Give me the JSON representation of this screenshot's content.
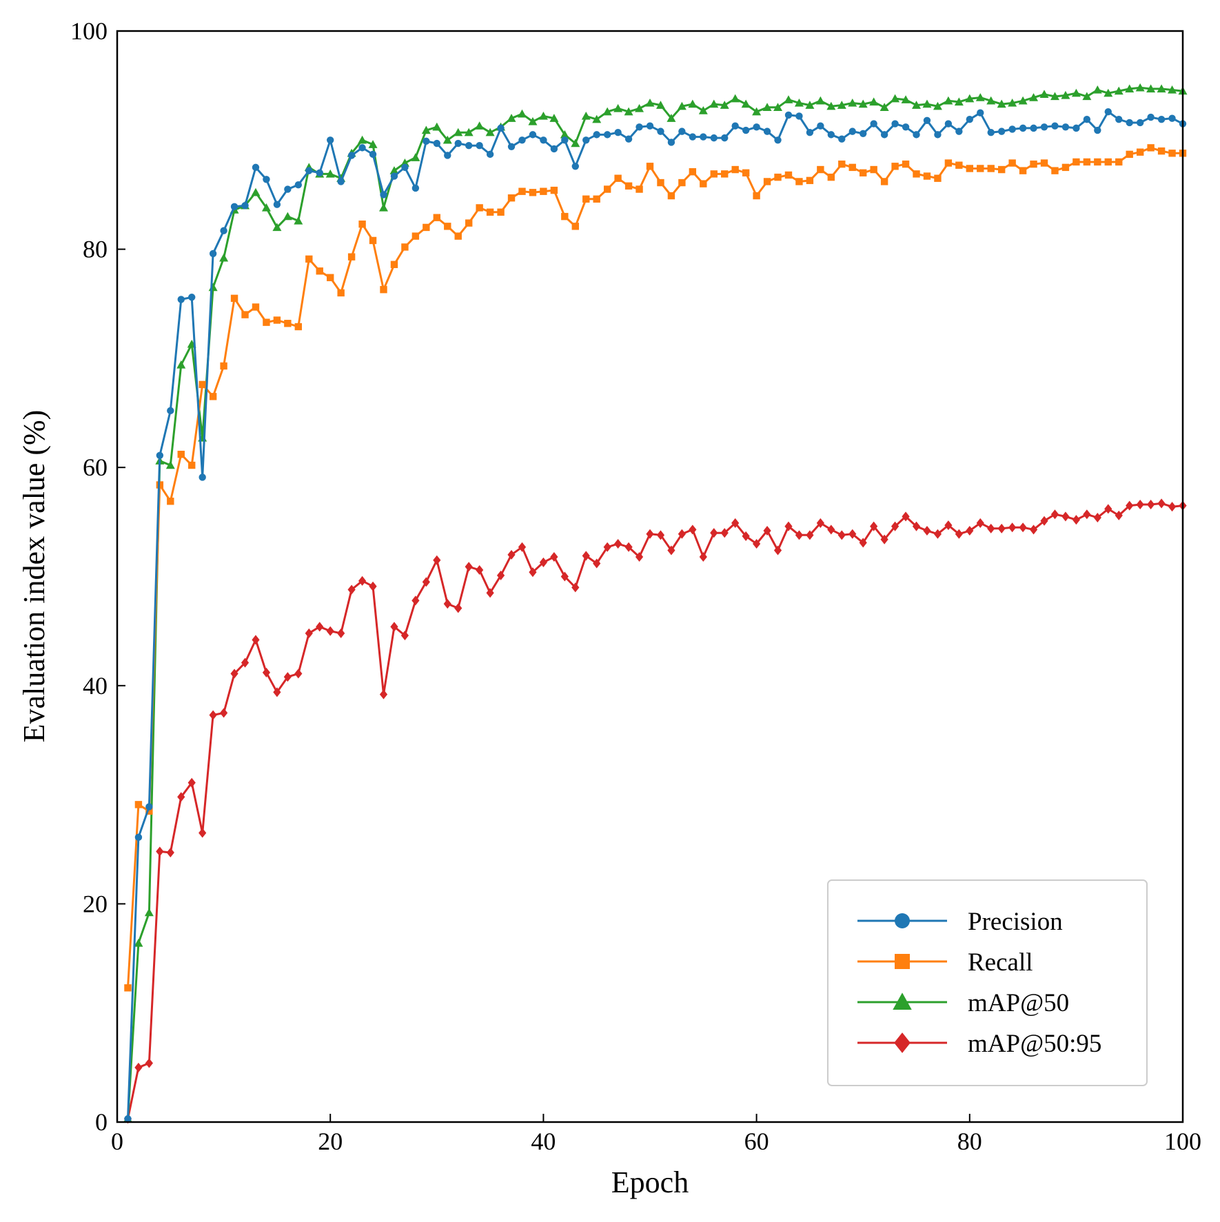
{
  "chart_data": {
    "type": "line",
    "xlabel": "Epoch",
    "ylabel": "Evaluation index value (%)",
    "xlim": [
      0,
      100
    ],
    "ylim": [
      0,
      100
    ],
    "xticks": [
      0,
      20,
      40,
      60,
      80,
      100
    ],
    "yticks": [
      0,
      20,
      40,
      60,
      80,
      100
    ],
    "grid": false,
    "legend_position": "lower-right",
    "x": [
      1,
      2,
      3,
      4,
      5,
      6,
      7,
      8,
      9,
      10,
      11,
      12,
      13,
      14,
      15,
      16,
      17,
      18,
      19,
      20,
      21,
      22,
      23,
      24,
      25,
      26,
      27,
      28,
      29,
      30,
      31,
      32,
      33,
      34,
      35,
      36,
      37,
      38,
      39,
      40,
      41,
      42,
      43,
      44,
      45,
      46,
      47,
      48,
      49,
      50,
      51,
      52,
      53,
      54,
      55,
      56,
      57,
      58,
      59,
      60,
      61,
      62,
      63,
      64,
      65,
      66,
      67,
      68,
      69,
      70,
      71,
      72,
      73,
      74,
      75,
      76,
      77,
      78,
      79,
      80,
      81,
      82,
      83,
      84,
      85,
      86,
      87,
      88,
      89,
      90,
      91,
      92,
      93,
      94,
      95,
      96,
      97,
      98,
      99,
      100
    ],
    "series": [
      {
        "name": "Precision",
        "color": "#1f77b4",
        "marker": "circle",
        "values": [
          0.3,
          26.1,
          28.9,
          61.1,
          65.2,
          75.4,
          75.6,
          59.1,
          79.6,
          81.7,
          83.9,
          84.0,
          87.5,
          86.4,
          84.1,
          85.5,
          85.9,
          87.2,
          87.0,
          90.0,
          86.2,
          88.6,
          89.3,
          88.7,
          85.0,
          86.7,
          87.5,
          85.6,
          89.9,
          89.7,
          88.6,
          89.7,
          89.5,
          89.5,
          88.7,
          91.1,
          89.4,
          90.0,
          90.5,
          90.0,
          89.2,
          90.0,
          87.6,
          90.0,
          90.5,
          90.5,
          90.7,
          90.1,
          91.2,
          91.3,
          90.8,
          89.8,
          90.8,
          90.3,
          90.3,
          90.2,
          90.2,
          91.3,
          90.9,
          91.2,
          90.8,
          90.0,
          92.3,
          92.2,
          90.7,
          91.3,
          90.5,
          90.1,
          90.8,
          90.6,
          91.5,
          90.5,
          91.5,
          91.2,
          90.5,
          91.8,
          90.5,
          91.5,
          90.8,
          91.9,
          92.5,
          90.7,
          90.8,
          91.0,
          91.1,
          91.1,
          91.2,
          91.3,
          91.2,
          91.1,
          91.9,
          90.9,
          92.6,
          91.9,
          91.6,
          91.6,
          92.1,
          91.9,
          92.0,
          91.5
        ]
      },
      {
        "name": "Recall",
        "color": "#ff7f0e",
        "marker": "square",
        "values": [
          12.3,
          29.1,
          28.5,
          58.4,
          56.9,
          61.2,
          60.2,
          67.6,
          66.5,
          69.3,
          75.5,
          74.0,
          74.7,
          73.3,
          73.5,
          73.2,
          72.9,
          79.1,
          78.0,
          77.4,
          76.0,
          79.3,
          82.3,
          80.8,
          76.3,
          78.6,
          80.2,
          81.2,
          82.0,
          82.9,
          82.1,
          81.2,
          82.4,
          83.8,
          83.4,
          83.4,
          84.7,
          85.3,
          85.2,
          85.3,
          85.4,
          83.0,
          82.1,
          84.6,
          84.6,
          85.5,
          86.5,
          85.8,
          85.5,
          87.6,
          86.1,
          84.9,
          86.1,
          87.1,
          86.0,
          86.9,
          86.9,
          87.3,
          87.0,
          84.9,
          86.2,
          86.6,
          86.8,
          86.2,
          86.3,
          87.3,
          86.6,
          87.8,
          87.5,
          87.0,
          87.3,
          86.2,
          87.6,
          87.8,
          86.9,
          86.7,
          86.5,
          87.9,
          87.7,
          87.4,
          87.4,
          87.4,
          87.3,
          87.9,
          87.2,
          87.8,
          87.9,
          87.2,
          87.5,
          88.0,
          88.0,
          88.0,
          88.0,
          88.0,
          88.7,
          88.9,
          89.3,
          89.0,
          88.8,
          88.8
        ]
      },
      {
        "name": "mAP@50",
        "color": "#2ca02c",
        "marker": "triangle",
        "values": [
          0.3,
          16.4,
          19.2,
          60.6,
          60.2,
          69.4,
          71.3,
          62.7,
          76.5,
          79.2,
          83.6,
          84.0,
          85.2,
          83.8,
          82.0,
          83.0,
          82.6,
          87.5,
          86.9,
          86.9,
          86.5,
          88.8,
          90.0,
          89.6,
          83.8,
          87.2,
          87.9,
          88.4,
          90.9,
          91.2,
          90.0,
          90.7,
          90.7,
          91.3,
          90.7,
          91.2,
          92.0,
          92.4,
          91.7,
          92.2,
          92.0,
          90.5,
          89.7,
          92.2,
          91.9,
          92.6,
          92.9,
          92.6,
          92.9,
          93.4,
          93.2,
          92.0,
          93.1,
          93.3,
          92.7,
          93.3,
          93.2,
          93.8,
          93.3,
          92.6,
          93.0,
          93.0,
          93.7,
          93.4,
          93.2,
          93.6,
          93.1,
          93.2,
          93.4,
          93.3,
          93.5,
          93.0,
          93.8,
          93.7,
          93.2,
          93.3,
          93.1,
          93.6,
          93.5,
          93.8,
          93.9,
          93.6,
          93.3,
          93.4,
          93.6,
          93.9,
          94.2,
          94.0,
          94.1,
          94.3,
          94.0,
          94.6,
          94.3,
          94.5,
          94.7,
          94.8,
          94.7,
          94.7,
          94.6,
          94.5
        ]
      },
      {
        "name": "mAP@50:95",
        "color": "#d62728",
        "marker": "diamond",
        "values": [
          0.3,
          5.0,
          5.4,
          24.8,
          24.7,
          29.8,
          31.1,
          26.5,
          37.3,
          37.5,
          41.1,
          42.1,
          44.2,
          41.2,
          39.4,
          40.8,
          41.1,
          44.8,
          45.4,
          45.0,
          44.8,
          48.8,
          49.6,
          49.1,
          39.2,
          45.4,
          44.6,
          47.8,
          49.5,
          51.5,
          47.5,
          47.1,
          50.9,
          50.6,
          48.5,
          50.1,
          52.0,
          52.7,
          50.4,
          51.3,
          51.8,
          50.0,
          49.0,
          51.9,
          51.2,
          52.7,
          53.0,
          52.7,
          51.8,
          53.9,
          53.8,
          52.4,
          53.9,
          54.3,
          51.8,
          54.0,
          54.0,
          54.9,
          53.7,
          53.0,
          54.2,
          52.4,
          54.6,
          53.8,
          53.8,
          54.9,
          54.3,
          53.8,
          53.9,
          53.1,
          54.6,
          53.4,
          54.6,
          55.5,
          54.6,
          54.2,
          53.9,
          54.7,
          53.9,
          54.2,
          54.9,
          54.4,
          54.4,
          54.5,
          54.5,
          54.3,
          55.1,
          55.7,
          55.5,
          55.2,
          55.7,
          55.4,
          56.2,
          55.6,
          56.5,
          56.6,
          56.6,
          56.7,
          56.4,
          56.5
        ]
      }
    ]
  }
}
